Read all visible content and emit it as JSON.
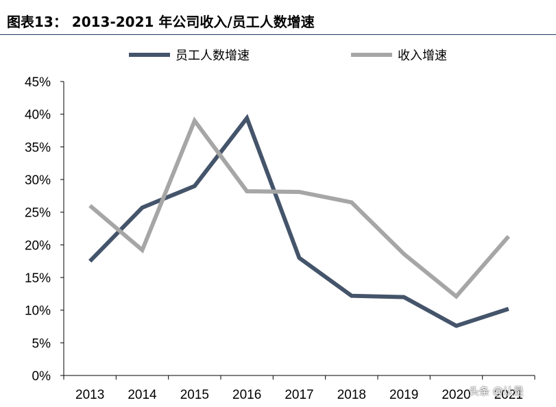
{
  "title": "图表13：   2013-2021 年公司收入/员工人数增速",
  "watermark": "头条 @认是",
  "chart_data": {
    "type": "line",
    "categories": [
      "2013",
      "2014",
      "2015",
      "2016",
      "2017",
      "2018",
      "2019",
      "2020",
      "2021"
    ],
    "series": [
      {
        "name": "员工人数增速",
        "color": "#44546a",
        "values": [
          17.5,
          25.7,
          29.0,
          39.4,
          18.0,
          12.2,
          12.0,
          7.6,
          10.2
        ]
      },
      {
        "name": "收入增速",
        "color": "#a6a6a6",
        "values": [
          26.0,
          19.2,
          39.0,
          28.2,
          28.1,
          26.5,
          18.6,
          12.1,
          21.3
        ]
      }
    ],
    "yticks": [
      "0%",
      "5%",
      "10%",
      "15%",
      "20%",
      "25%",
      "30%",
      "35%",
      "40%",
      "45%"
    ],
    "ylim": [
      0,
      45
    ],
    "grid": false,
    "legend_position": "top"
  }
}
